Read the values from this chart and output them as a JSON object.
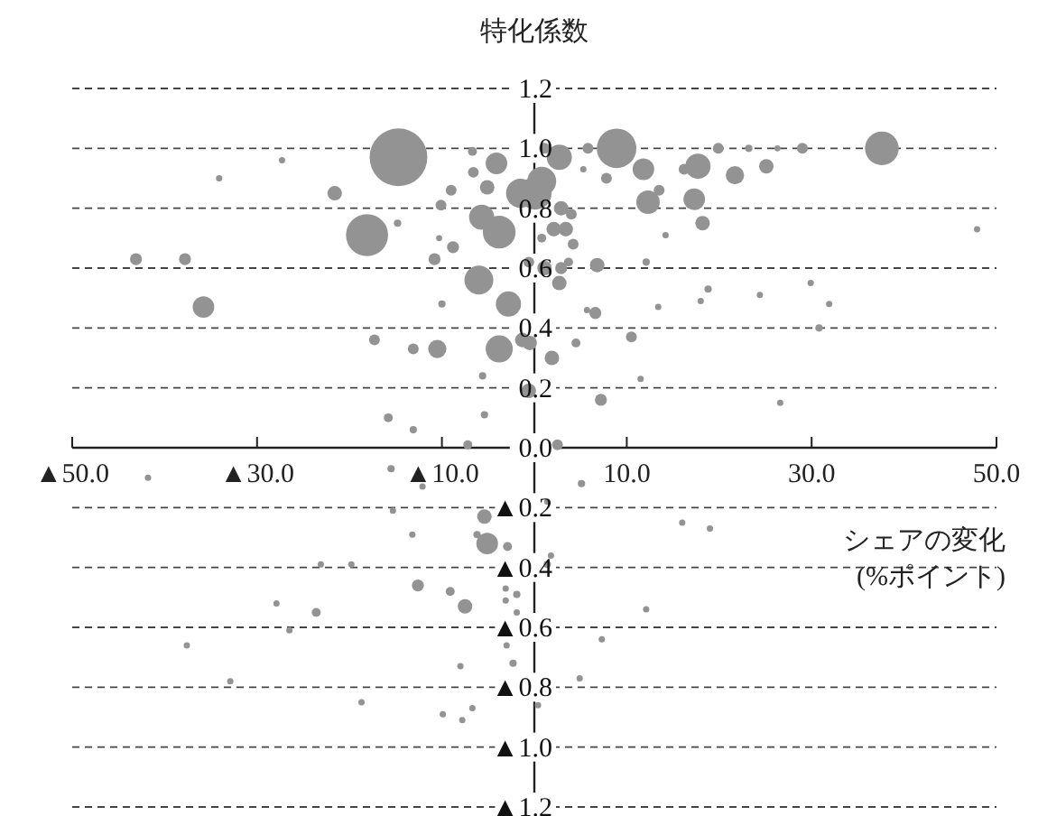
{
  "chart_data": {
    "type": "bubble",
    "ylabel": "特化係数",
    "xlabel": "シェアの変化\n(%ポイント)",
    "color": "#939393",
    "grid": "y",
    "line_style": "dashed",
    "xlim": [
      -50,
      50
    ],
    "ylim": [
      -1.2,
      1.2
    ],
    "xticks": [
      {
        "value": -50,
        "label": "▲50.0"
      },
      {
        "value": -30,
        "label": "▲30.0"
      },
      {
        "value": -10,
        "label": "▲10.0"
      },
      {
        "value": 10,
        "label": "10.0"
      },
      {
        "value": 30,
        "label": "30.0"
      },
      {
        "value": 50,
        "label": "50.0"
      }
    ],
    "yticks": [
      {
        "value": 1.2,
        "label": "1.2"
      },
      {
        "value": 1,
        "label": "1.0"
      },
      {
        "value": 0.8,
        "label": "0.8"
      },
      {
        "value": 0.6,
        "label": "0.6"
      },
      {
        "value": 0.4,
        "label": "0.4"
      },
      {
        "value": 0.2,
        "label": "0.2"
      },
      {
        "value": 0,
        "label": "0.0"
      },
      {
        "value": -0.2,
        "label": "▲0.2"
      },
      {
        "value": -0.4,
        "label": "▲0.4"
      },
      {
        "value": -0.6,
        "label": "▲0.6"
      },
      {
        "value": -0.8,
        "label": "▲0.8"
      },
      {
        "value": -1,
        "label": "▲1.0"
      },
      {
        "value": -1.2,
        "label": "▲1.2"
      }
    ],
    "x": [
      -14.7,
      -21.6,
      -18.1,
      -43.1,
      -37.8,
      -35.8,
      -27.3,
      -34.1,
      -14.8,
      -17.3,
      -13.1,
      -10.5,
      -10,
      -10.8,
      -8.8,
      -10.3,
      -10.1,
      -9,
      -6.7,
      -6.6,
      -5.1,
      -4.1,
      -6,
      -3.8,
      -2.8,
      -3.8,
      -5.7,
      -1.5,
      -0.6,
      -5.4,
      -15.8,
      -13.1,
      -7.2,
      -5.6,
      -1.3,
      8.9,
      37.6,
      2.7,
      1.1,
      5.8,
      11.8,
      17.7,
      16.2,
      19.9,
      23.2,
      26.3,
      29,
      25.1,
      21.7,
      7.8,
      13.5,
      12.3,
      17.3,
      18.2,
      0.8,
      0.1,
      2.9,
      4,
      2.1,
      3.4,
      4.2,
      0.8,
      1.1,
      2.9,
      2.7,
      3.7,
      6.8,
      12.1,
      13.4,
      18.8,
      18,
      24.4,
      31.9,
      29.9,
      30.8,
      47.9,
      6.6,
      5.7,
      4.5,
      10.5,
      1.9,
      -0.5,
      7.2,
      26.6,
      2.5,
      11.5,
      14.2,
      5.3,
      -0.6,
      -5.4,
      -5.1,
      -2.9,
      -6.2,
      -13.2,
      -12.6,
      -9.1,
      -7.5,
      -3.1,
      -1.9,
      -3.1,
      -1.9,
      -23.6,
      -23.1,
      -19.8,
      -26.5,
      -2.3,
      -3,
      -9.9,
      -7.8,
      -6.7,
      -8,
      -15.5,
      -12.1,
      -15.3,
      5.1,
      1.4,
      1.8,
      1.4,
      16,
      7.3,
      4.9,
      19,
      12.1,
      0.4,
      -37.6,
      -32.9,
      -18.7,
      -27.9,
      -41.8
    ],
    "values": [
      0.97,
      0.85,
      0.71,
      0.63,
      0.63,
      0.47,
      0.96,
      0.9,
      0.75,
      0.36,
      0.33,
      0.33,
      0.48,
      0.63,
      0.67,
      0.7,
      0.81,
      0.86,
      0.99,
      0.92,
      0.87,
      0.95,
      0.56,
      0.72,
      0.48,
      0.33,
      0.77,
      0.85,
      0.19,
      0.11,
      0.1,
      0.06,
      0.01,
      0.24,
      0.36,
      1,
      1,
      0.97,
      1,
      1,
      0.93,
      0.94,
      0.93,
      1,
      1,
      1,
      1,
      0.94,
      0.91,
      0.9,
      0.86,
      0.82,
      0.83,
      0.75,
      0.89,
      0.85,
      0.8,
      0.78,
      0.73,
      0.73,
      0.68,
      0.7,
      0.6,
      0.6,
      0.55,
      0.62,
      0.61,
      0.62,
      0.47,
      0.53,
      0.49,
      0.51,
      0.48,
      0.55,
      0.4,
      0.73,
      0.45,
      0.46,
      0.35,
      0.37,
      0.3,
      0.35,
      0.16,
      0.15,
      0.01,
      0.23,
      0.71,
      0.93,
      0.62,
      -0.23,
      -0.32,
      -0.33,
      -0.29,
      -0.29,
      -0.46,
      -0.48,
      -0.53,
      -0.47,
      -0.49,
      -0.51,
      -0.55,
      -0.55,
      -0.39,
      -0.39,
      -0.61,
      -0.72,
      -0.66,
      -0.89,
      -0.91,
      -0.87,
      -0.73,
      -0.07,
      -0.13,
      -0.21,
      -0.12,
      -0.39,
      -0.36,
      -0.18,
      -0.25,
      -0.64,
      -0.77,
      -0.27,
      -0.54,
      -0.86,
      -0.66,
      -0.78,
      -0.85,
      -0.52,
      -0.1
    ],
    "sizes": [
      1,
      0.063,
      0.53,
      0.043,
      0.043,
      0.14,
      0.012,
      0.012,
      0.016,
      0.035,
      0.035,
      0.1,
      0.016,
      0.043,
      0.043,
      0.011,
      0.035,
      0.035,
      0.024,
      0.035,
      0.063,
      0.14,
      0.25,
      0.32,
      0.19,
      0.22,
      0.19,
      0.25,
      0.063,
      0.016,
      0.024,
      0.016,
      0.024,
      0.016,
      0.063,
      0.47,
      0.34,
      0.19,
      0.035,
      0.035,
      0.14,
      0.19,
      0.035,
      0.035,
      0.016,
      0.011,
      0.035,
      0.063,
      0.1,
      0.035,
      0.035,
      0.165,
      0.14,
      0.063,
      0.25,
      0.32,
      0.063,
      0.035,
      0.063,
      0.063,
      0.035,
      0.024,
      0.063,
      0.043,
      0.063,
      0.024,
      0.063,
      0.016,
      0.012,
      0.016,
      0.012,
      0.012,
      0.012,
      0.012,
      0.016,
      0.012,
      0.043,
      0.012,
      0.024,
      0.035,
      0.063,
      0.063,
      0.043,
      0.012,
      0.035,
      0.012,
      0.012,
      0.012,
      0.035,
      0.063,
      0.14,
      0.024,
      0.016,
      0.012,
      0.043,
      0.024,
      0.063,
      0.012,
      0.016,
      0.012,
      0.012,
      0.024,
      0.012,
      0.012,
      0.012,
      0.016,
      0.012,
      0.012,
      0.012,
      0.012,
      0.012,
      0.016,
      0.012,
      0.012,
      0.016,
      0.016,
      0.012,
      0.012,
      0.012,
      0.012,
      0.012,
      0.012,
      0.012,
      0.012,
      0.012,
      0.012,
      0.012,
      0.012,
      0.012
    ]
  }
}
